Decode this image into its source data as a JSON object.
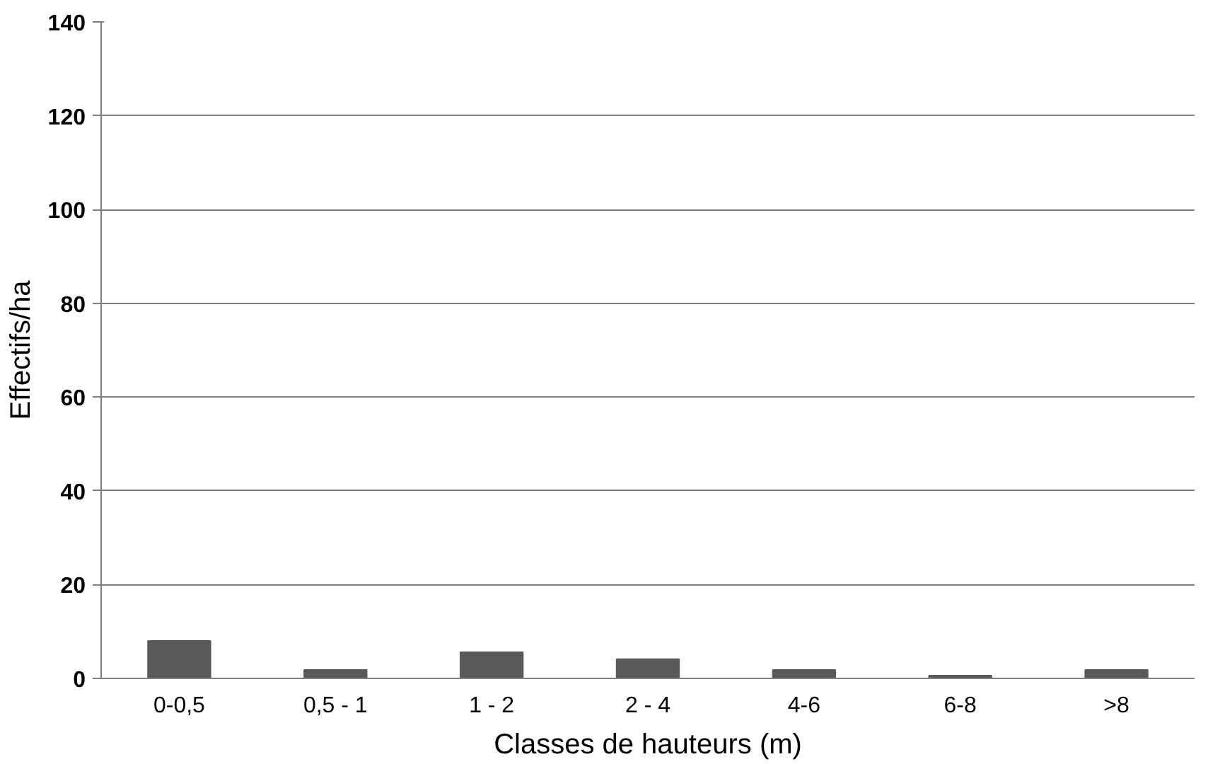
{
  "chart_data": {
    "type": "bar",
    "xlabel": "Classes de hauteurs (m)",
    "ylabel": "Effectifs/ha",
    "categories": [
      "0-0,5",
      "0,5 - 1",
      "1 - 2",
      "2 - 4",
      "4-6",
      "6-8",
      ">8"
    ],
    "values": [
      8,
      1.8,
      5.6,
      4.1,
      1.8,
      0.6,
      1.8
    ],
    "color": "#595959",
    "ylim": [
      0,
      140
    ],
    "yticks": [
      0,
      20,
      40,
      60,
      80,
      100,
      120,
      140
    ],
    "grid": "y"
  }
}
